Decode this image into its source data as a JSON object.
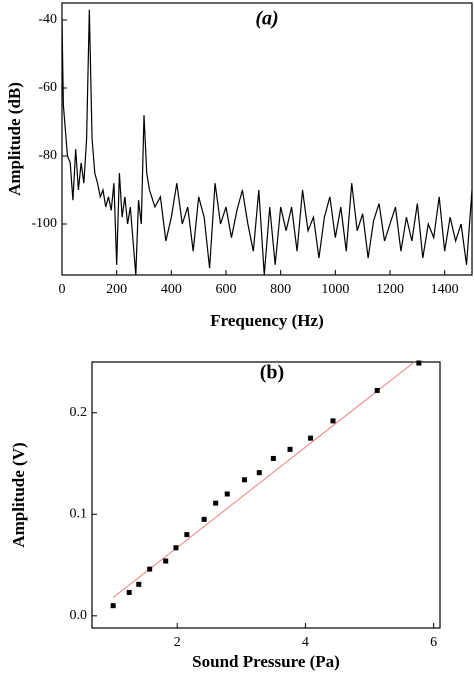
{
  "chart_data": [
    {
      "type": "line",
      "title": "(a)",
      "x_label": "Frequency (Hz)",
      "y_label": "Amplitude (dB)",
      "color": "#000000",
      "x": [
        0,
        5,
        10,
        20,
        30,
        40,
        50,
        60,
        70,
        80,
        90,
        100,
        110,
        120,
        130,
        140,
        150,
        160,
        170,
        180,
        190,
        200,
        210,
        220,
        230,
        240,
        250,
        260,
        270,
        280,
        290,
        300,
        310,
        320,
        340,
        360,
        380,
        400,
        420,
        440,
        460,
        480,
        500,
        520,
        540,
        560,
        580,
        600,
        620,
        640,
        660,
        680,
        700,
        720,
        740,
        760,
        780,
        800,
        820,
        840,
        860,
        880,
        900,
        920,
        940,
        960,
        980,
        1000,
        1020,
        1040,
        1060,
        1080,
        1100,
        1120,
        1140,
        1160,
        1180,
        1200,
        1220,
        1240,
        1260,
        1280,
        1300,
        1320,
        1340,
        1360,
        1380,
        1400,
        1420,
        1440,
        1460,
        1480,
        1500
      ],
      "values": [
        -40,
        -65,
        -70,
        -80,
        -82,
        -93,
        -78,
        -90,
        -82,
        -88,
        -75,
        -37,
        -75,
        -85,
        -88,
        -92,
        -90,
        -95,
        -92,
        -96,
        -88,
        -112,
        -85,
        -98,
        -92,
        -100,
        -95,
        -105,
        -115,
        -93,
        -100,
        -68,
        -85,
        -90,
        -95,
        -92,
        -105,
        -98,
        -88,
        -100,
        -95,
        -108,
        -92,
        -98,
        -113,
        -88,
        -100,
        -95,
        -104,
        -96,
        -90,
        -100,
        -108,
        -90,
        -115,
        -95,
        -112,
        -95,
        -102,
        -95,
        -108,
        -90,
        -102,
        -98,
        -110,
        -98,
        -92,
        -104,
        -95,
        -108,
        -88,
        -102,
        -97,
        -110,
        -99,
        -94,
        -105,
        -100,
        -95,
        -108,
        -98,
        -105,
        -94,
        -110,
        -100,
        -104,
        -92,
        -108,
        -98,
        -105,
        -100,
        -112,
        -90
      ],
      "xlim": [
        0,
        1500
      ],
      "ylim": [
        -115,
        -35
      ],
      "xticks": [
        0,
        200,
        400,
        600,
        800,
        1000,
        1200,
        1400
      ],
      "yticks": [
        -40,
        -60,
        -80,
        -100
      ]
    },
    {
      "type": "scatter",
      "title": "(b)",
      "x_label": "Sound Pressure (Pa)",
      "y_label": "Amplitude (V)",
      "color": "#000000",
      "x": [
        1.0,
        1.25,
        1.4,
        1.57,
        1.82,
        1.98,
        2.15,
        2.42,
        2.6,
        2.78,
        3.05,
        3.28,
        3.5,
        3.76,
        4.08,
        4.43,
        5.12,
        5.77
      ],
      "values": [
        0.01,
        0.023,
        0.031,
        0.046,
        0.054,
        0.067,
        0.08,
        0.095,
        0.111,
        0.12,
        0.134,
        0.141,
        0.155,
        0.164,
        0.175,
        0.192,
        0.222,
        0.249
      ],
      "fit": {
        "x": [
          1.0,
          5.7
        ],
        "y": [
          0.018,
          0.25
        ],
        "color": "#f08080"
      },
      "xlim": [
        0.67,
        6.1
      ],
      "ylim": [
        -0.012,
        0.25
      ],
      "xticks": [
        2,
        4,
        6
      ],
      "yticks": [
        {
          "value": 0,
          "label": "0.0"
        },
        0.1,
        0.2
      ]
    }
  ]
}
